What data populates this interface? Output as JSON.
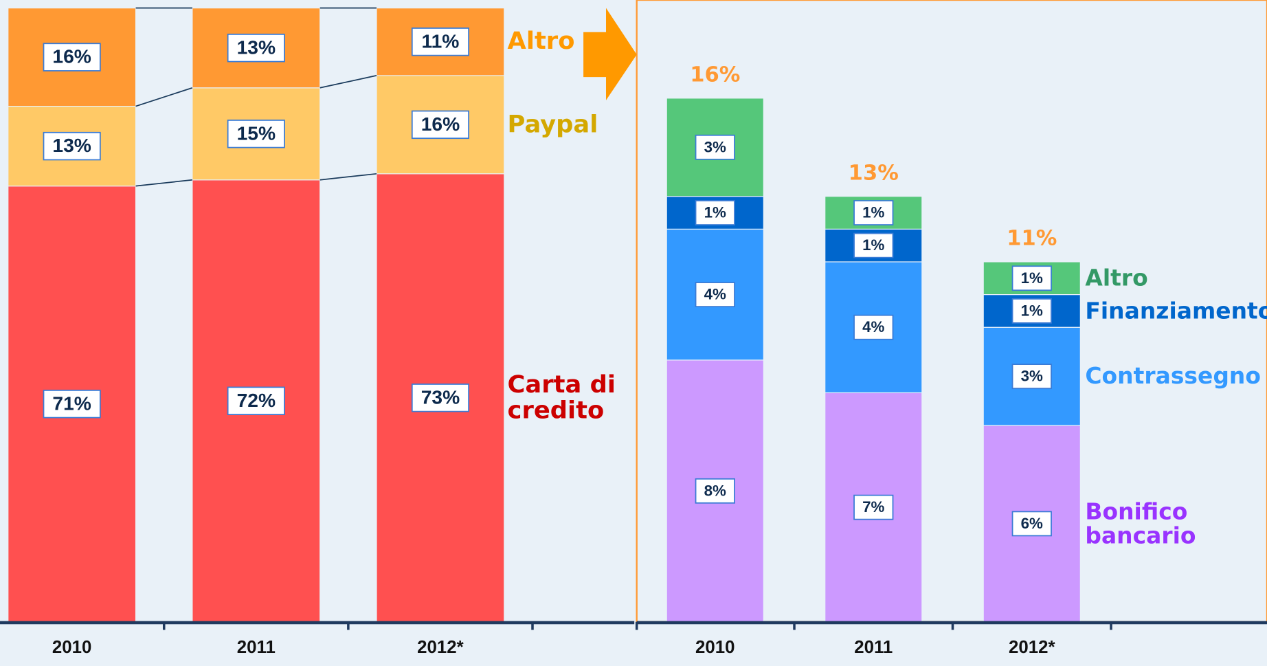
{
  "chart_data": [
    {
      "type": "bar",
      "stacked": true,
      "categories": [
        "2010",
        "2011",
        "2012*"
      ],
      "series": [
        {
          "name": "Carta di credito",
          "color": "#ff5050",
          "label_color": "#cc0000",
          "values": [
            71,
            72,
            73
          ],
          "value_labels": [
            "71%",
            "72%",
            "73%"
          ]
        },
        {
          "name": "Paypal",
          "color": "#ffc966",
          "label_color": "#d4a800",
          "values": [
            13,
            15,
            16
          ],
          "value_labels": [
            "13%",
            "15%",
            "16%"
          ]
        },
        {
          "name": "Altro",
          "color": "#ff9933",
          "label_color": "#ff9900",
          "values": [
            16,
            13,
            11
          ],
          "value_labels": [
            "16%",
            "13%",
            "11%"
          ]
        }
      ],
      "ylim": [
        0,
        100
      ]
    },
    {
      "type": "bar",
      "stacked": true,
      "categories": [
        "2010",
        "2011",
        "2012*"
      ],
      "series": [
        {
          "name": "Bonifico bancario",
          "color": "#cc99ff",
          "label_color": "#9933ff",
          "values": [
            8,
            7,
            6
          ],
          "value_labels": [
            "8%",
            "7%",
            "6%"
          ]
        },
        {
          "name": "Contrassegno",
          "color": "#3399ff",
          "label_color": "#3399ff",
          "values": [
            4,
            4,
            3
          ],
          "value_labels": [
            "4%",
            "4%",
            "3%"
          ]
        },
        {
          "name": "Finanziamento",
          "color": "#0066cc",
          "label_color": "#0066cc",
          "values": [
            1,
            1,
            1
          ],
          "value_labels": [
            "1%",
            "1%",
            "1%"
          ]
        },
        {
          "name": "Altro",
          "color": "#55c77a",
          "label_color": "#339966",
          "values": [
            3,
            1,
            1
          ],
          "value_labels": [
            "3%",
            "1%",
            "1%"
          ]
        }
      ],
      "totals": [
        16,
        13,
        11
      ],
      "total_labels": [
        "16%",
        "13%",
        "11%"
      ],
      "total_color": "#ff9933",
      "ylim": [
        0,
        19
      ]
    }
  ]
}
